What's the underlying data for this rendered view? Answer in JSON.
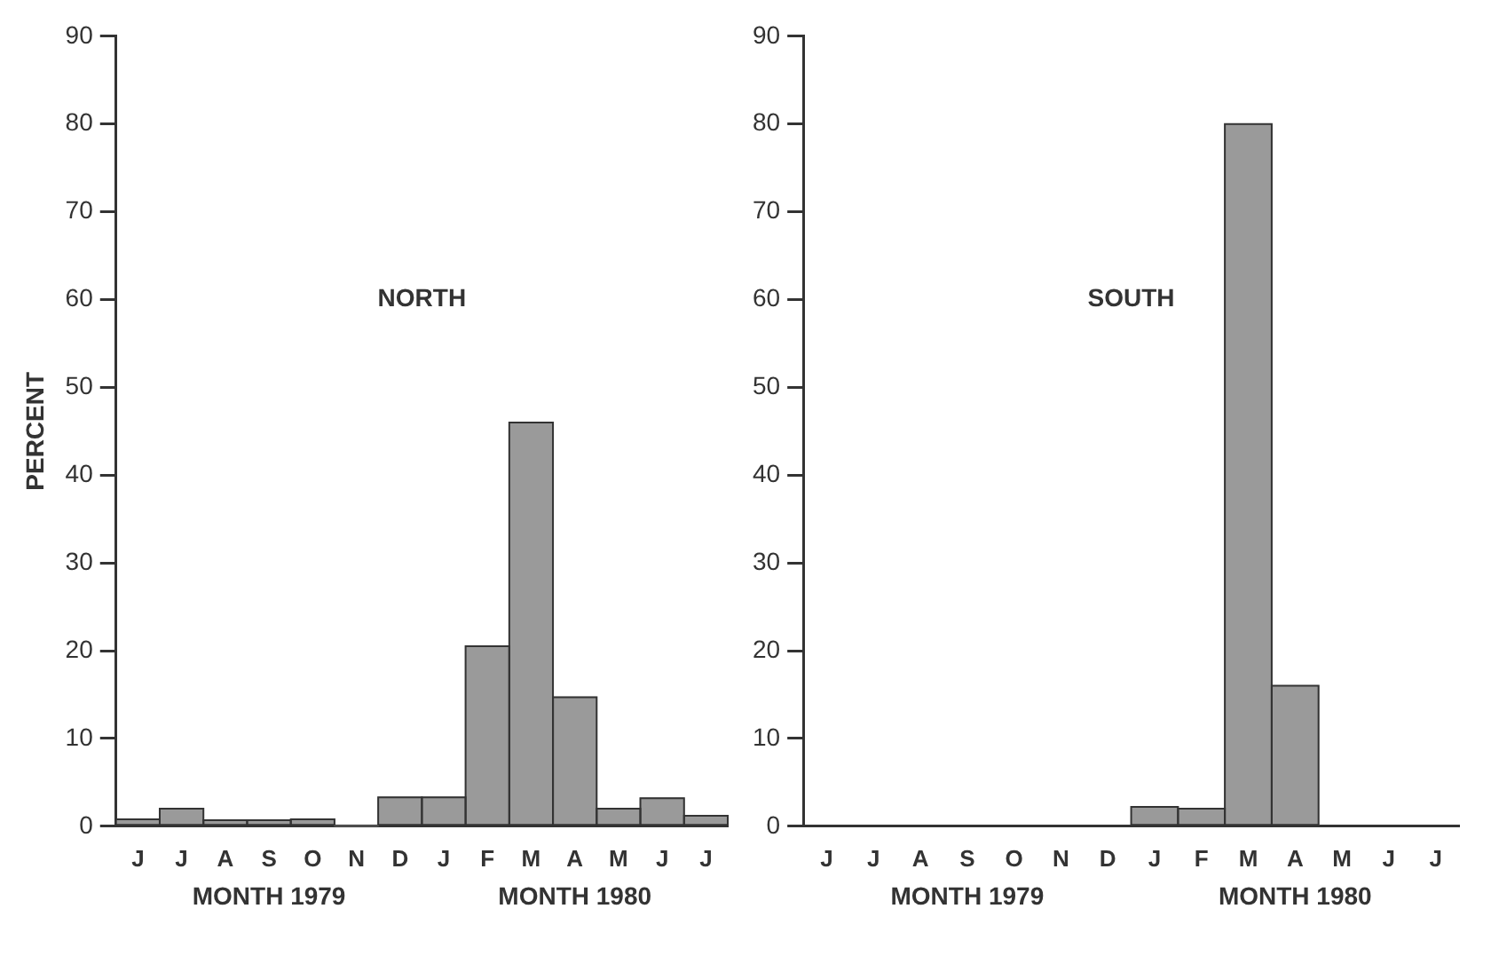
{
  "chart_data": [
    {
      "type": "bar",
      "ylabel": "PERCENT",
      "annotations": [
        "NORTH",
        "MONTH 1979",
        "MONTH 1980"
      ],
      "categories": [
        "J",
        "J",
        "A",
        "S",
        "O",
        "N",
        "D",
        "J",
        "F",
        "M",
        "A",
        "M",
        "J",
        "J"
      ],
      "series": [
        {
          "color": "#9a9a9a",
          "values": [
            0.8,
            2,
            0.7,
            0.7,
            0.8,
            0,
            3.3,
            3.3,
            20.5,
            46,
            14.7,
            2,
            3.2,
            1.2
          ]
        }
      ],
      "ylim": [
        0,
        90
      ],
      "yticks": [
        0,
        10,
        20,
        30,
        40,
        50,
        60,
        70,
        80,
        90
      ],
      "grid": false,
      "legend": false
    },
    {
      "type": "bar",
      "annotations": [
        "SOUTH",
        "MONTH 1979",
        "MONTH 1980"
      ],
      "categories": [
        "J",
        "J",
        "A",
        "S",
        "O",
        "N",
        "D",
        "J",
        "F",
        "M",
        "A",
        "M",
        "J",
        "J"
      ],
      "series": [
        {
          "color": "#9a9a9a",
          "values": [
            null,
            null,
            null,
            null,
            null,
            null,
            null,
            2.2,
            2,
            80,
            16,
            null,
            null,
            null
          ]
        }
      ],
      "ylim": [
        0,
        90
      ],
      "yticks": [
        0,
        10,
        20,
        30,
        40,
        50,
        60,
        70,
        80,
        90
      ],
      "grid": false,
      "legend": false
    }
  ]
}
